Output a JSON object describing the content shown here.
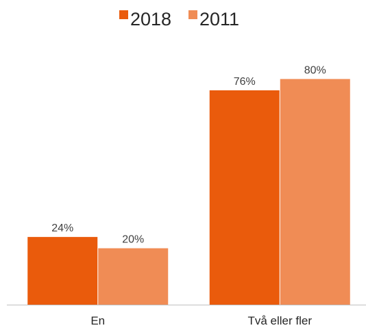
{
  "chart_data": {
    "type": "bar",
    "categories": [
      "En",
      "Två eller fler"
    ],
    "series": [
      {
        "name": "2018",
        "values": [
          24,
          76
        ],
        "labels": [
          "24%",
          "76%"
        ],
        "color": "#EA5B0C"
      },
      {
        "name": "2011",
        "values": [
          20,
          80
        ],
        "labels": [
          "20%",
          "80%"
        ],
        "color": "#F08C55"
      }
    ],
    "ylim": [
      0,
      100
    ],
    "grid": false,
    "y_axis_visible": false,
    "legend_position": "top-center",
    "axis_color": "#BFBFBF",
    "label_color": "#404040"
  }
}
